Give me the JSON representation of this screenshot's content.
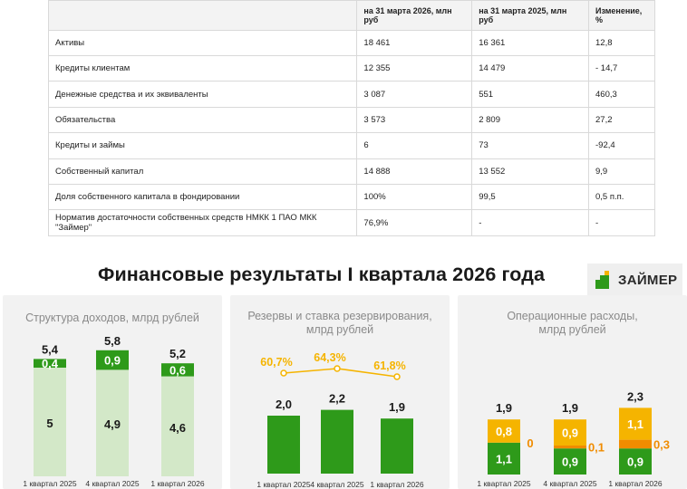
{
  "table": {
    "headers": [
      "",
      "на 31 марта 2026, млн руб",
      "на 31 марта 2025, млн руб",
      "Изменение, %"
    ],
    "rows": [
      [
        "Активы",
        "18 461",
        "16 361",
        "12,8"
      ],
      [
        "Кредиты клиентам",
        "12 355",
        "14 479",
        "- 14,7"
      ],
      [
        "Денежные средства и их эквиваленты",
        "3 087",
        "551",
        "460,3"
      ],
      [
        "Обязательства",
        "3 573",
        "2 809",
        "27,2"
      ],
      [
        "Кредиты и займы",
        "6",
        "73",
        "-92,4"
      ],
      [
        "Собственный капитал",
        "14 888",
        "13 552",
        "9,9"
      ],
      [
        "Доля собственного капитала в фондировании",
        "100%",
        "99,5",
        "0,5 п.п."
      ],
      [
        "Норматив достаточности собственных средств НМКК 1 ПАО МКК \"Займер\"",
        "76,9%",
        "-",
        "-"
      ]
    ]
  },
  "heading": "Финансовые результаты I квартала 2026 года",
  "logo_text": "ЗАЙМЕР",
  "colors": {
    "green": "#2e9a1a",
    "light_green": "#d3e8c8",
    "orange": "#f5b400",
    "orange_dark": "#f08c00",
    "panel_bg": "#f2f2f2"
  },
  "chart_data": [
    {
      "type": "bar",
      "title": "Структура доходов, млрд рублей",
      "categories": [
        "1 квартал 2025",
        "4 квартал 2025",
        "1 квартал 2026"
      ],
      "series": [
        {
          "values": [
            5,
            4.9,
            4.6
          ],
          "labels": [
            "5",
            "4,9",
            "4,6"
          ]
        },
        {
          "values": [
            0.4,
            0.9,
            0.6
          ],
          "labels": [
            "0,4",
            "0,9",
            "0,6"
          ]
        }
      ],
      "totals": [
        "5,4",
        "5,8",
        "5,2"
      ]
    },
    {
      "type": "bar",
      "title": "Резервы и ставка резервирования, млрд рублей",
      "categories": [
        "1 квартал 2025",
        "4 квартал 2025",
        "1 квартал 2026"
      ],
      "values": [
        2.0,
        2.2,
        1.9
      ],
      "value_labels": [
        "2,0",
        "2,2",
        "1,9"
      ],
      "line": {
        "values": [
          60.7,
          64.3,
          61.8
        ],
        "labels": [
          "60,7%",
          "64,3%",
          "61,8%"
        ]
      }
    },
    {
      "type": "bar",
      "title": "Операционные расходы, млрд рублей",
      "categories": [
        "1 квартал 2025",
        "4 квартал 2025",
        "1 квартал 2026"
      ],
      "series": [
        {
          "values": [
            1.1,
            0.9,
            0.9
          ],
          "labels": [
            "1,1",
            "0,9",
            "0,9"
          ]
        },
        {
          "values": [
            0,
            0.1,
            0.3
          ],
          "labels": [
            "0",
            "0,1",
            "0,3"
          ]
        },
        {
          "values": [
            0.8,
            0.9,
            1.1
          ],
          "labels": [
            "0,8",
            "0,9",
            "1,1"
          ]
        }
      ],
      "totals": [
        "1,9",
        "1,9",
        "2,3"
      ]
    }
  ]
}
